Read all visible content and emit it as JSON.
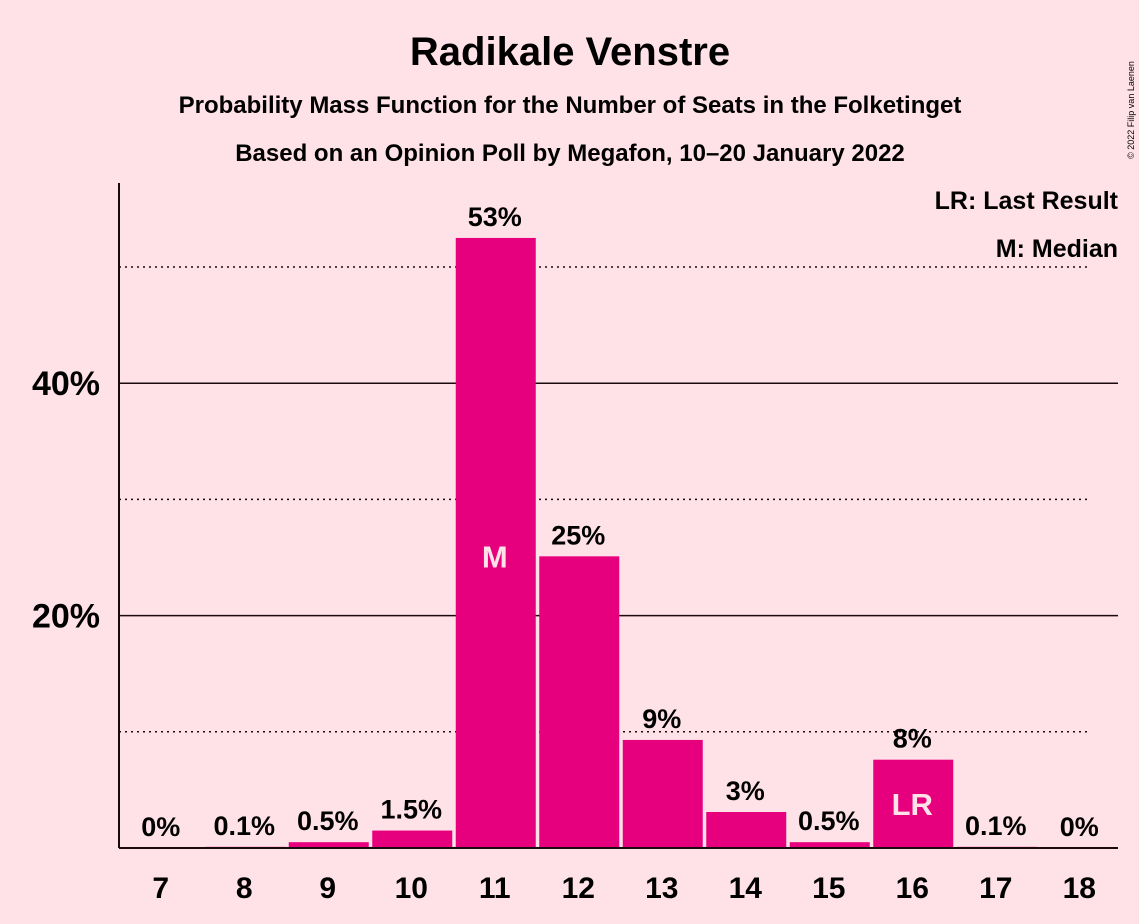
{
  "chart_data": {
    "type": "bar",
    "title": "Radikale Venstre",
    "subtitle_lines": [
      "Probability Mass Function for the Number of Seats in the Folketinget",
      "Based on an Opinion Poll by Megafon, 10–20 January 2022"
    ],
    "copyright": "© 2022 Filip van Laenen",
    "legend_lines": [
      "LR: Last Result",
      "M: Median"
    ],
    "legend_position": "top-right",
    "categories": [
      "7",
      "8",
      "9",
      "10",
      "11",
      "12",
      "13",
      "14",
      "15",
      "16",
      "17",
      "18"
    ],
    "values": [
      0,
      0.1,
      0.5,
      1.5,
      52.5,
      25.1,
      9.3,
      3.1,
      0.5,
      7.6,
      0.1,
      0
    ],
    "data_labels": [
      "0%",
      "0.1%",
      "0.5%",
      "1.5%",
      "53%",
      "25%",
      "9%",
      "3%",
      "0.5%",
      "8%",
      "0.1%",
      "0%"
    ],
    "bar_marks": [
      {
        "category": "11",
        "label": "M"
      },
      {
        "category": "16",
        "label": "LR"
      }
    ],
    "y_ticks": [
      {
        "value": 20,
        "label": "20%"
      },
      {
        "value": 40,
        "label": "40%"
      }
    ],
    "y_minor_gridlines": [
      10,
      30,
      50
    ],
    "ylim": [
      0,
      57
    ],
    "bar_color": "#E6007E",
    "background_color": "#FFE2E8",
    "grid": true
  }
}
